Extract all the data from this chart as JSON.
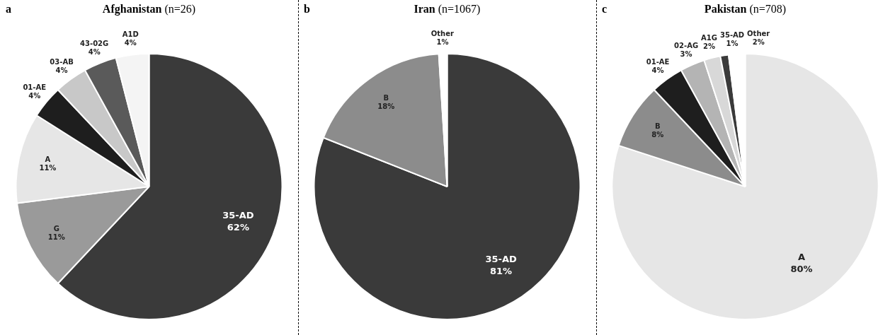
{
  "chart_data": [
    {
      "type": "pie",
      "title": "Afghanistan",
      "subtitle": "(n=26)",
      "annotations": [
        "a"
      ],
      "legend": false,
      "categories": [
        "35-AD",
        "G",
        "A",
        "01-AE",
        "03-AB",
        "43-02G",
        "A1D"
      ],
      "values": [
        62,
        11,
        11,
        4,
        4,
        4,
        4
      ],
      "value_labels": [
        "62%",
        "11%",
        "11%",
        "4%",
        "4%",
        "4%",
        "4%"
      ],
      "colors": [
        "#3a3a3a",
        "#9a9a9a",
        "#e6e6e6",
        "#1e1e1e",
        "#c8c8c8",
        "#5a5a5a",
        "#f4f4f4"
      ]
    },
    {
      "type": "pie",
      "title": "Iran",
      "subtitle": "(n=1067)",
      "annotations": [
        "b"
      ],
      "legend": false,
      "categories": [
        "35-AD",
        "B",
        "Other"
      ],
      "values": [
        81,
        18,
        1
      ],
      "value_labels": [
        "81%",
        "18%",
        "1%"
      ],
      "colors": [
        "#3a3a3a",
        "#8c8c8c",
        "#ffffff"
      ]
    },
    {
      "type": "pie",
      "title": "Pakistan",
      "subtitle": "(n=708)",
      "annotations": [
        "c"
      ],
      "legend": false,
      "categories": [
        "A",
        "B",
        "01-AE",
        "02-AG",
        "A1G",
        "35-AD",
        "Other"
      ],
      "values": [
        80,
        8,
        4,
        3,
        2,
        1,
        2
      ],
      "value_labels": [
        "80%",
        "8%",
        "4%",
        "3%",
        "2%",
        "1%",
        "2%"
      ],
      "colors": [
        "#e6e6e6",
        "#8c8c8c",
        "#1e1e1e",
        "#b4b4b4",
        "#d8d8d8",
        "#3a3a3a",
        "#ffffff"
      ]
    }
  ]
}
